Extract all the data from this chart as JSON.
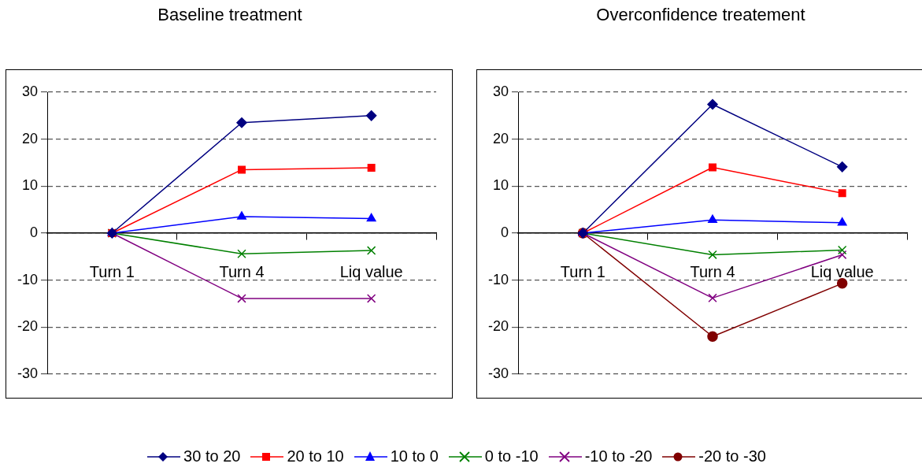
{
  "chart_data": [
    {
      "type": "line",
      "title": "Baseline treatment",
      "categories": [
        "Turn 1",
        "Turn 4",
        "Liq value"
      ],
      "ylim": [
        -30,
        30
      ],
      "yticks": [
        -30,
        -20,
        -10,
        0,
        10,
        20,
        30
      ],
      "grid": "y",
      "legend": "bottom",
      "series": [
        {
          "name": "30 to 20",
          "color": "#000080",
          "marker": "diamond",
          "values": [
            0,
            23.5,
            25
          ]
        },
        {
          "name": "20 to 10",
          "color": "#ff0000",
          "marker": "square",
          "values": [
            0,
            13.5,
            13.9
          ]
        },
        {
          "name": "10 to 0",
          "color": "#0000ff",
          "marker": "triangle",
          "values": [
            0,
            3.5,
            3.1
          ]
        },
        {
          "name": "0 to -10",
          "color": "#008000",
          "marker": "cross",
          "values": [
            0,
            -4.4,
            -3.7
          ]
        },
        {
          "name": "-10 to -20",
          "color": "#800080",
          "marker": "cross",
          "values": [
            0,
            -13.9,
            -13.9
          ]
        }
      ]
    },
    {
      "type": "line",
      "title": "Overconfidence treatement",
      "categories": [
        "Turn 1",
        "Turn 4",
        "Liq value"
      ],
      "ylim": [
        -30,
        30
      ],
      "yticks": [
        -30,
        -20,
        -10,
        0,
        10,
        20,
        30
      ],
      "grid": "y",
      "legend": "bottom",
      "series": [
        {
          "name": "30 to 20",
          "color": "#000080",
          "marker": "diamond",
          "values": [
            0,
            27.4,
            14.1
          ]
        },
        {
          "name": "20 to 10",
          "color": "#ff0000",
          "marker": "square",
          "values": [
            0,
            14,
            8.5
          ]
        },
        {
          "name": "10 to 0",
          "color": "#0000ff",
          "marker": "triangle",
          "values": [
            0,
            2.8,
            2.2
          ]
        },
        {
          "name": "0 to -10",
          "color": "#008000",
          "marker": "cross",
          "values": [
            0,
            -4.6,
            -3.6
          ]
        },
        {
          "name": "-10 to -20",
          "color": "#800080",
          "marker": "cross",
          "values": [
            0,
            -13.8,
            -4.6
          ]
        },
        {
          "name": "-20 to -30",
          "color": "#800000",
          "marker": "circle",
          "values": [
            0,
            -22,
            -10.7
          ]
        }
      ]
    }
  ]
}
